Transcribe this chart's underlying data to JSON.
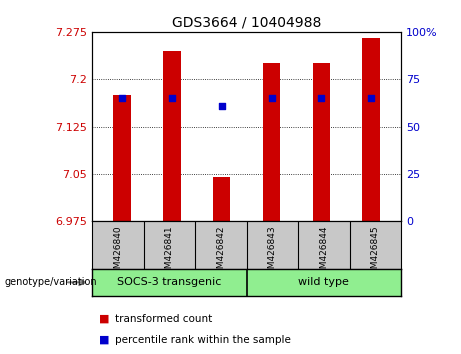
{
  "title": "GDS3664 / 10404988",
  "samples": [
    "GSM426840",
    "GSM426841",
    "GSM426842",
    "GSM426843",
    "GSM426844",
    "GSM426845"
  ],
  "red_values": [
    7.175,
    7.245,
    7.045,
    7.225,
    7.225,
    7.265
  ],
  "blue_values": [
    65,
    65,
    61,
    65,
    65,
    65
  ],
  "y_min": 6.975,
  "y_max": 7.275,
  "y_ticks": [
    6.975,
    7.05,
    7.125,
    7.2,
    7.275
  ],
  "y_tick_labels": [
    "6.975",
    "7.05",
    "7.125",
    "7.2",
    "7.275"
  ],
  "y2_ticks": [
    0,
    25,
    50,
    75,
    100
  ],
  "y2_tick_labels": [
    "0",
    "25",
    "50",
    "75",
    "100%"
  ],
  "bar_color": "#cc0000",
  "dot_color": "#0000cc",
  "bg_color": "#ffffff",
  "label_bg": "#c8c8c8",
  "group_bg": "#90ee90",
  "bar_width": 0.35,
  "dot_size": 18,
  "legend_labels": [
    "transformed count",
    "percentile rank within the sample"
  ],
  "group_labels": [
    "SOCS-3 transgenic",
    "wild type"
  ],
  "genotype_label": "genotype/variation"
}
